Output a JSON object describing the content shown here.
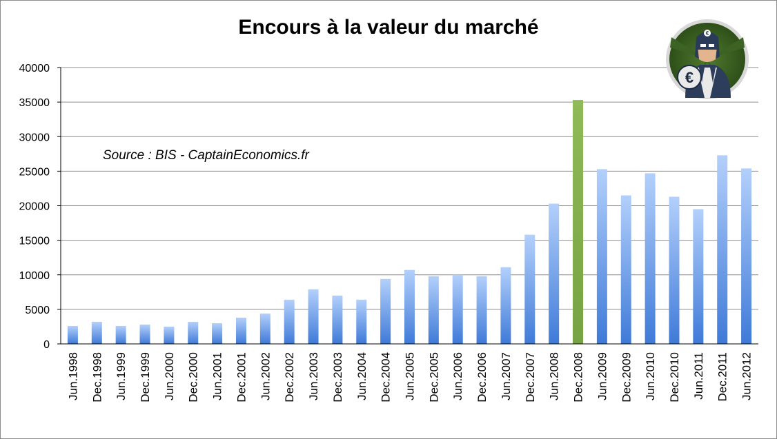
{
  "chart_data": {
    "type": "bar",
    "title": "Encours à la valeur du marché",
    "annotation": "Source : BIS - CaptainEconomics.fr",
    "xlabel": "",
    "ylabel": "",
    "ylim": [
      0,
      40000
    ],
    "yticks": [
      "0",
      "5000",
      "10000",
      "15000",
      "20000",
      "25000",
      "30000",
      "35000",
      "40000"
    ],
    "grid": true,
    "legend": "none",
    "categories": [
      "Jun.1998",
      "Dec.1998",
      "Jun.1999",
      "Dec.1999",
      "Jun.2000",
      "Dec.2000",
      "Jun.2001",
      "Dec.2001",
      "Jun.2002",
      "Dec.2002",
      "Jun.2003",
      "Dec.2003",
      "Jun.2004",
      "Dec.2004",
      "Jun.2005",
      "Dec.2005",
      "Jun.2006",
      "Dec.2006",
      "Jun.2007",
      "Dec.2007",
      "Jun.2008",
      "Dec.2008",
      "Jun.2009",
      "Dec.2009",
      "Jun.2010",
      "Dec.2010",
      "Jun.2011",
      "Dec.2011",
      "Jun.2012"
    ],
    "values": [
      2600,
      3200,
      2600,
      2800,
      2500,
      3200,
      3000,
      3800,
      4400,
      6400,
      7900,
      7000,
      6400,
      9400,
      10700,
      9800,
      10000,
      9800,
      11100,
      15800,
      20300,
      35300,
      25300,
      21500,
      24700,
      21300,
      19500,
      27300,
      25400
    ],
    "highlight_index": 21,
    "colors": {
      "bar_top": "#b3d0fb",
      "bar_bottom": "#3f7ad8",
      "highlight": "#82ad4d",
      "grid": "#8c8c8c",
      "axis": "#000000"
    }
  },
  "logo": {
    "icon": "captain-economics-euro-hero-logo"
  }
}
